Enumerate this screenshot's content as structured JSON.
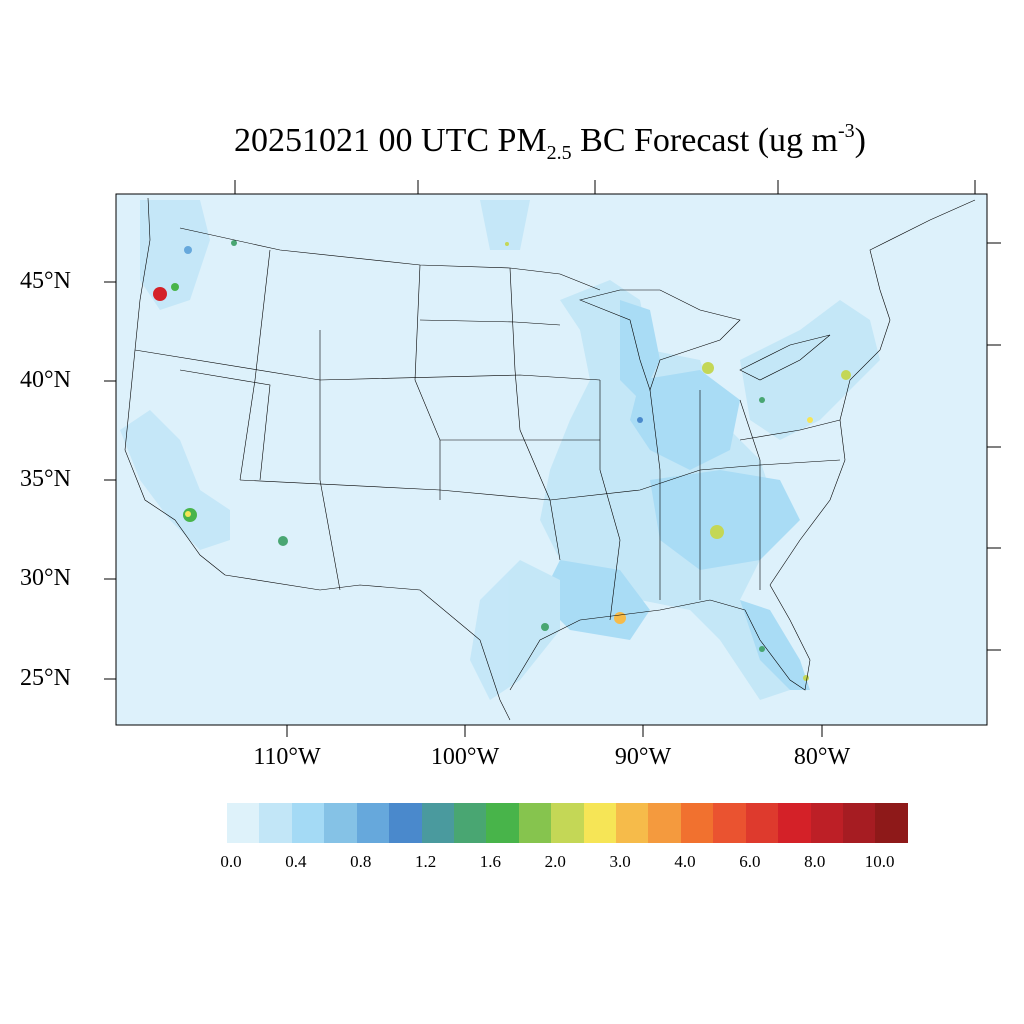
{
  "title": {
    "date_time": "20251021 00 UTC PM",
    "sub": "2.5",
    "middle": " BC Forecast (ug m",
    "sup": "-3",
    "end": ")"
  },
  "map": {
    "background_color": "#ddf1fb",
    "lat_labels": [
      "45°N",
      "40°N",
      "35°N",
      "30°N",
      "25°N"
    ],
    "lon_labels": [
      "110°W",
      "100°W",
      "90°W",
      "80°W"
    ]
  },
  "colorbar": {
    "colors": [
      "#def2fa",
      "#c2e6f7",
      "#a4daf5",
      "#85c2e6",
      "#66a8dc",
      "#4a89cc",
      "#4a9a9e",
      "#49a672",
      "#48b44a",
      "#86c44e",
      "#c4d756",
      "#f6e556",
      "#f6bb4a",
      "#f49a3e",
      "#f1712f",
      "#ea5330",
      "#de3a2d",
      "#d42128",
      "#bd1f26",
      "#a61c22",
      "#8e1919"
    ],
    "tick_labels": [
      "0.0",
      "0.4",
      "0.8",
      "1.2",
      "1.6",
      "2.0",
      "3.0",
      "4.0",
      "6.0",
      "8.0",
      "10.0"
    ]
  }
}
